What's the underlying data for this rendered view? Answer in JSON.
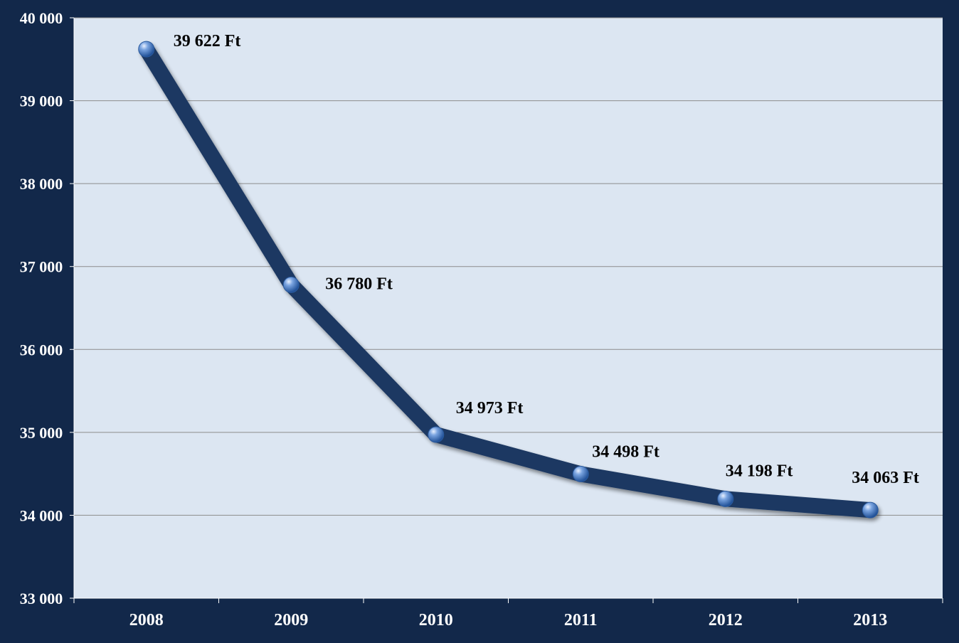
{
  "chart_data": {
    "type": "line",
    "title": "",
    "xlabel": "",
    "ylabel": "",
    "categories": [
      "2008",
      "2009",
      "2010",
      "2011",
      "2012",
      "2013"
    ],
    "series": [
      {
        "values": [
          39622,
          36780,
          34973,
          34498,
          34198,
          34063
        ]
      }
    ],
    "data_labels": [
      "39 622 Ft",
      "36 780 Ft",
      "34 973 Ft",
      "34 498 Ft",
      "34 198 Ft",
      "34 063 Ft"
    ],
    "y_ticks": [
      33000,
      34000,
      35000,
      36000,
      37000,
      38000,
      39000,
      40000
    ],
    "y_tick_labels": [
      "33 000",
      "34 000",
      "35 000",
      "36 000",
      "37 000",
      "38 000",
      "39 000",
      "40 000"
    ],
    "ylim": [
      33000,
      40000
    ],
    "grid": true,
    "legend": "none",
    "colors": {
      "background": "#12284a",
      "plot_area": "#dce6f2",
      "line": "#1b3862",
      "marker": "#4f7fc2",
      "gridline": "#8c8c8c",
      "text_light": "#ffffff",
      "text_dark": "#000000"
    }
  }
}
